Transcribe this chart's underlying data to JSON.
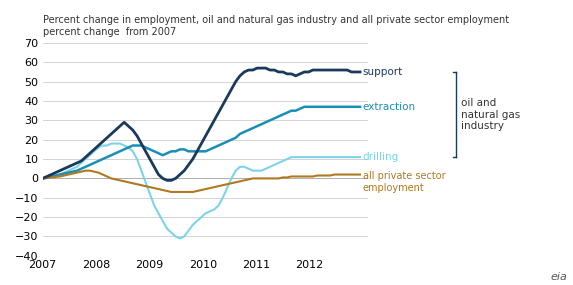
{
  "title_line1": "Percent change in employment, oil and natural gas industry and all private sector employment",
  "title_line2": "percent change  from 2007",
  "ylim": [
    -40,
    70
  ],
  "yticks": [
    -40,
    -30,
    -20,
    -10,
    0,
    10,
    20,
    30,
    40,
    50,
    60,
    70
  ],
  "xlim_start": 2007.0,
  "xlim_end": 2013.1,
  "xtick_labels": [
    "2007",
    "2008",
    "2009",
    "2010",
    "2011",
    "2012"
  ],
  "colors": {
    "support": "#1a3a5c",
    "extraction": "#1a8fb5",
    "drilling": "#7dd3e8",
    "private": "#b07820"
  },
  "support": [
    0,
    1,
    2,
    3,
    4,
    5,
    6,
    7,
    8,
    9,
    11,
    13,
    15,
    17,
    19,
    21,
    23,
    25,
    27,
    29,
    27,
    25,
    22,
    18,
    14,
    10,
    6,
    2,
    0,
    -1,
    -1,
    0,
    2,
    4,
    7,
    10,
    14,
    18,
    22,
    26,
    30,
    34,
    38,
    42,
    46,
    50,
    53,
    55,
    56,
    56,
    57,
    57,
    57,
    56,
    56,
    55,
    55,
    54,
    54,
    53,
    54,
    55,
    55,
    56,
    56,
    56,
    56,
    56,
    56,
    56,
    56,
    56,
    55,
    55,
    55
  ],
  "extraction": [
    0,
    0.5,
    1,
    1.5,
    2,
    2.5,
    3,
    3.5,
    4,
    5,
    6,
    7,
    8,
    9,
    10,
    11,
    12,
    13,
    14,
    15,
    16,
    17,
    17,
    17,
    16,
    15,
    14,
    13,
    12,
    13,
    14,
    14,
    15,
    15,
    14,
    14,
    14,
    14,
    14,
    15,
    16,
    17,
    18,
    19,
    20,
    21,
    23,
    24,
    25,
    26,
    27,
    28,
    29,
    30,
    31,
    32,
    33,
    34,
    35,
    35,
    36,
    37,
    37,
    37,
    37,
    37,
    37,
    37,
    37,
    37,
    37,
    37,
    37,
    37,
    37
  ],
  "drilling": [
    0,
    0.2,
    0.5,
    1,
    2,
    3,
    4,
    5,
    6,
    8,
    10,
    12,
    14,
    16,
    17,
    17,
    18,
    18,
    18,
    17,
    16,
    14,
    10,
    4,
    -2,
    -8,
    -14,
    -18,
    -22,
    -26,
    -28,
    -30,
    -31,
    -30,
    -27,
    -24,
    -22,
    -20,
    -18,
    -17,
    -16,
    -14,
    -10,
    -5,
    0,
    4,
    6,
    6,
    5,
    4,
    4,
    4,
    5,
    6,
    7,
    8,
    9,
    10,
    11,
    11,
    11,
    11,
    11,
    11,
    11,
    11,
    11,
    11,
    11,
    11,
    11,
    11,
    11,
    11,
    11
  ],
  "private": [
    0,
    0.2,
    0.5,
    0.8,
    1,
    1.5,
    2,
    2.5,
    3,
    3.5,
    4,
    4,
    3.5,
    3,
    2,
    1,
    0,
    -0.5,
    -1,
    -1.5,
    -2,
    -2.5,
    -3,
    -3.5,
    -4,
    -4.5,
    -5,
    -5.5,
    -6,
    -6.5,
    -7,
    -7,
    -7,
    -7,
    -7,
    -7,
    -6.5,
    -6,
    -5.5,
    -5,
    -4.5,
    -4,
    -3.5,
    -3,
    -2.5,
    -2,
    -1.5,
    -1,
    -0.5,
    0,
    0,
    0,
    0,
    0,
    0,
    0,
    0.5,
    0.5,
    1,
    1,
    1,
    1,
    1,
    1,
    1.5,
    1.5,
    1.5,
    1.5,
    2,
    2,
    2,
    2,
    2,
    2,
    2
  ]
}
